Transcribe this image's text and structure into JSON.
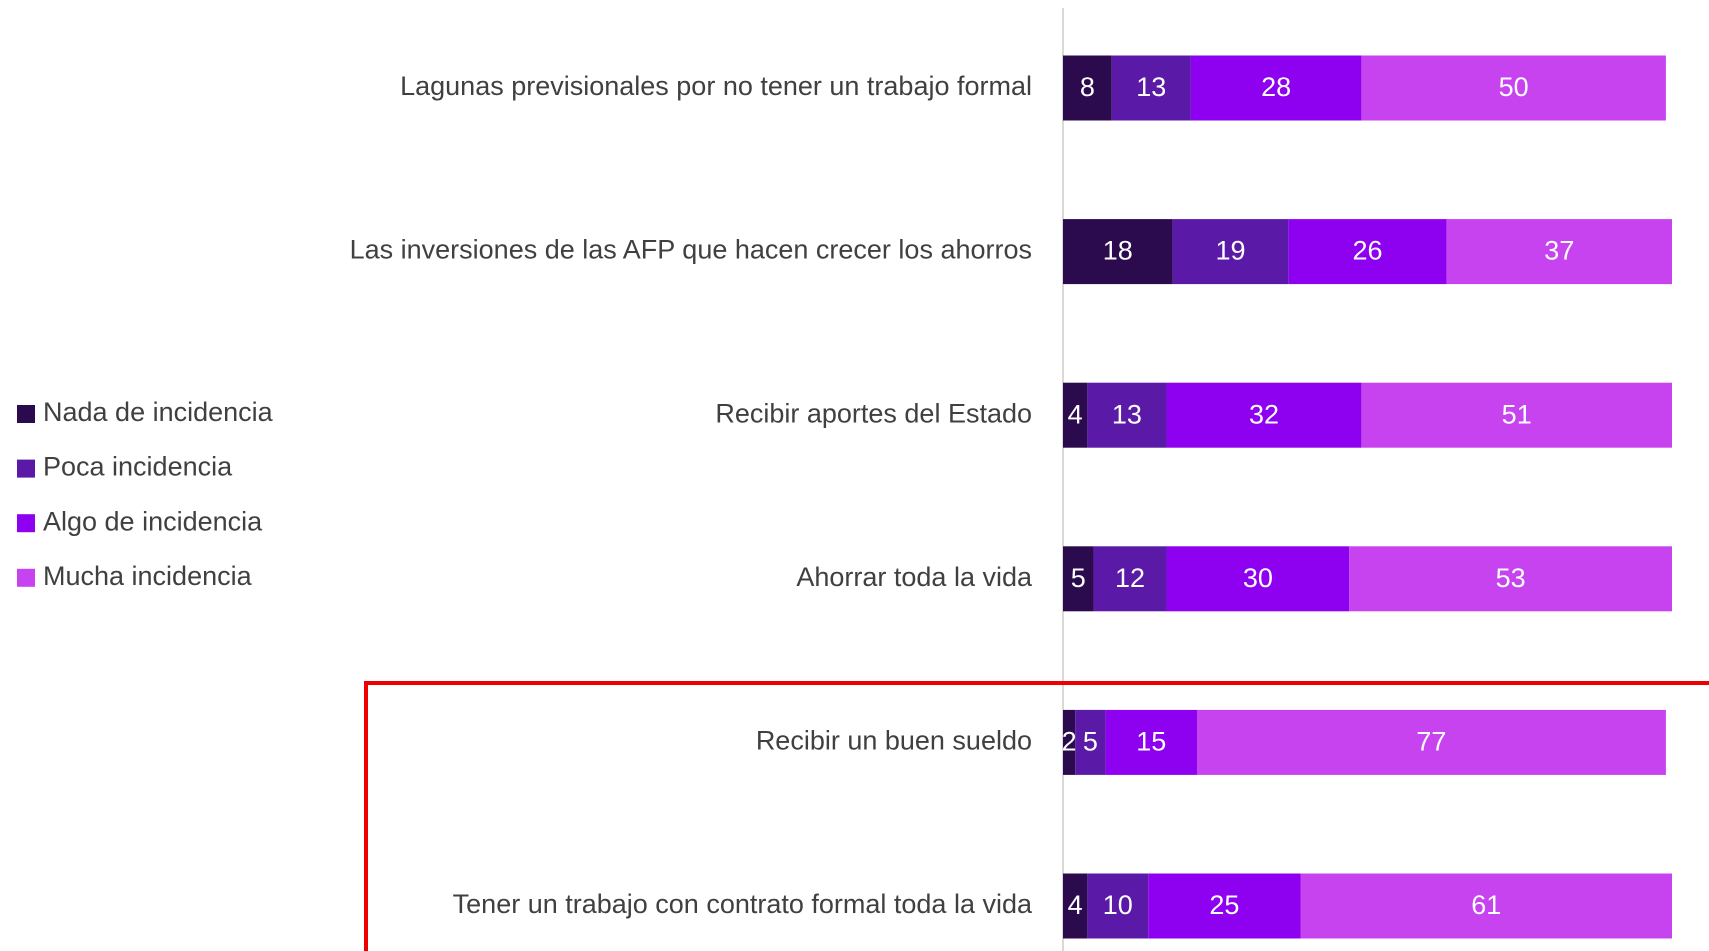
{
  "chart_data": {
    "type": "stacked_barh",
    "categories": [
      "Lagunas previsionales por no tener un trabajo formal",
      "Las inversiones de las AFP que hacen crecer los ahorros",
      "Recibir aportes del Estado",
      "Ahorrar toda la vida",
      "Recibir un buen sueldo",
      "Tener un trabajo con contrato formal toda la vida"
    ],
    "series": [
      {
        "name": "Nada de incidencia",
        "color": "#2b0a4d",
        "values": [
          8,
          18,
          4,
          5,
          2,
          4
        ]
      },
      {
        "name": "Poca incidencia",
        "color": "#5b19a8",
        "values": [
          13,
          19,
          13,
          12,
          5,
          10
        ]
      },
      {
        "name": "Algo de incidencia",
        "color": "#8e00f0",
        "values": [
          28,
          26,
          32,
          30,
          15,
          25
        ]
      },
      {
        "name": "Mucha incidencia",
        "color": "#c743f0",
        "values": [
          50,
          37,
          51,
          53,
          77,
          61
        ]
      }
    ],
    "xlim": [
      0,
      100
    ],
    "legend": "left"
  }
}
